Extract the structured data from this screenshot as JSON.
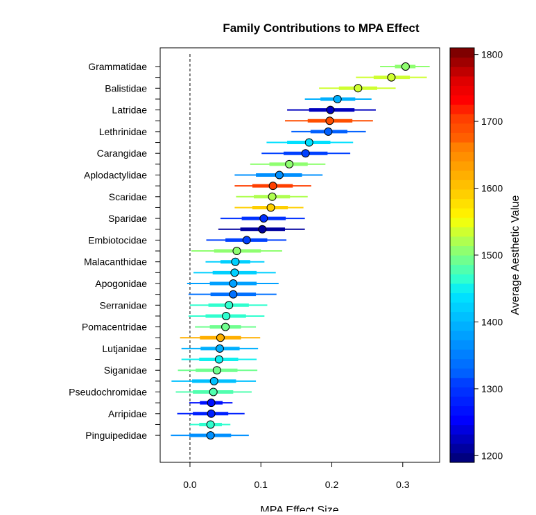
{
  "chart_data": {
    "type": "dot-interval",
    "title": "Family Contributions to MPA Effect",
    "xlabel": "MPA Effect Size",
    "xlim": [
      -0.042,
      0.352
    ],
    "xticks": [
      0.0,
      0.1,
      0.2,
      0.3
    ],
    "xtick_labels": [
      "0.0",
      "0.1",
      "0.2",
      "0.3"
    ],
    "reference_line_x": 0.0,
    "colorbar": {
      "label": "Average Aesthetic Value",
      "min": 1190,
      "max": 1810,
      "ticks": [
        1200,
        1300,
        1400,
        1500,
        1600,
        1700,
        1800
      ],
      "colors": [
        "#00007F",
        "#00009F",
        "#0000BF",
        "#0000DF",
        "#0000FF",
        "#0010FF",
        "#0020FF",
        "#0030FF",
        "#0040FF",
        "#0060FF",
        "#0070FF",
        "#0080FF",
        "#0090FF",
        "#00A0FF",
        "#00B0FF",
        "#00C0FF",
        "#00D0FF",
        "#00E0FF",
        "#10F0EF",
        "#30FFCF",
        "#50FFAF",
        "#70FF8F",
        "#8FFF70",
        "#AFFF50",
        "#CFFF30",
        "#EFFF10",
        "#FFF000",
        "#FFE000",
        "#FFCF00",
        "#FFBF00",
        "#FFAF00",
        "#FF9F00",
        "#FF8F00",
        "#FF7F00",
        "#FF5F00",
        "#FF4F00",
        "#FF3F00",
        "#FF2000",
        "#FF0000",
        "#EF0000",
        "#DF0000",
        "#BF0000",
        "#9F0000",
        "#7F0000"
      ]
    },
    "families": [
      {
        "name": "Grammatidae",
        "labeled": true,
        "mean": 0.304,
        "inner": [
          0.289,
          0.318
        ],
        "outer": [
          0.268,
          0.338
        ],
        "color": "#8FFF70"
      },
      {
        "name": "",
        "labeled": false,
        "mean": 0.284,
        "inner": [
          0.259,
          0.31
        ],
        "outer": [
          0.234,
          0.334
        ],
        "color": "#CFFF30"
      },
      {
        "name": "Balistidae",
        "labeled": true,
        "mean": 0.237,
        "inner": [
          0.21,
          0.264
        ],
        "outer": [
          0.182,
          0.29
        ],
        "color": "#CFFF30"
      },
      {
        "name": "",
        "labeled": false,
        "mean": 0.208,
        "inner": [
          0.184,
          0.233
        ],
        "outer": [
          0.162,
          0.256
        ],
        "color": "#00B0FF"
      },
      {
        "name": "Latridae",
        "labeled": true,
        "mean": 0.198,
        "inner": [
          0.168,
          0.232
        ],
        "outer": [
          0.137,
          0.262
        ],
        "color": "#0000BF"
      },
      {
        "name": "",
        "labeled": false,
        "mean": 0.197,
        "inner": [
          0.166,
          0.229
        ],
        "outer": [
          0.134,
          0.258
        ],
        "color": "#FF4F00"
      },
      {
        "name": "Lethrinidae",
        "labeled": true,
        "mean": 0.195,
        "inner": [
          0.17,
          0.222
        ],
        "outer": [
          0.143,
          0.248
        ],
        "color": "#0060FF"
      },
      {
        "name": "",
        "labeled": false,
        "mean": 0.168,
        "inner": [
          0.137,
          0.198
        ],
        "outer": [
          0.108,
          0.23
        ],
        "color": "#00E0FF"
      },
      {
        "name": "Carangidae",
        "labeled": true,
        "mean": 0.163,
        "inner": [
          0.132,
          0.194
        ],
        "outer": [
          0.101,
          0.226
        ],
        "color": "#0040FF"
      },
      {
        "name": "",
        "labeled": false,
        "mean": 0.14,
        "inner": [
          0.112,
          0.166
        ],
        "outer": [
          0.085,
          0.191
        ],
        "color": "#8FFF70"
      },
      {
        "name": "Aplodactylidae",
        "labeled": true,
        "mean": 0.126,
        "inner": [
          0.093,
          0.158
        ],
        "outer": [
          0.063,
          0.187
        ],
        "color": "#0090FF"
      },
      {
        "name": "",
        "labeled": false,
        "mean": 0.117,
        "inner": [
          0.088,
          0.145
        ],
        "outer": [
          0.063,
          0.171
        ],
        "color": "#FF3F00"
      },
      {
        "name": "Scaridae",
        "labeled": true,
        "mean": 0.116,
        "inner": [
          0.09,
          0.141
        ],
        "outer": [
          0.065,
          0.166
        ],
        "color": "#AFFF50"
      },
      {
        "name": "",
        "labeled": false,
        "mean": 0.114,
        "inner": [
          0.088,
          0.138
        ],
        "outer": [
          0.063,
          0.16
        ],
        "color": "#FFCF00"
      },
      {
        "name": "Sparidae",
        "labeled": true,
        "mean": 0.104,
        "inner": [
          0.073,
          0.135
        ],
        "outer": [
          0.043,
          0.162
        ],
        "color": "#0030FF"
      },
      {
        "name": "",
        "labeled": false,
        "mean": 0.102,
        "inner": [
          0.071,
          0.134
        ],
        "outer": [
          0.04,
          0.162
        ],
        "color": "#00009F"
      },
      {
        "name": "Embiotocidae",
        "labeled": true,
        "mean": 0.08,
        "inner": [
          0.05,
          0.109
        ],
        "outer": [
          0.023,
          0.136
        ],
        "color": "#0040FF"
      },
      {
        "name": "",
        "labeled": false,
        "mean": 0.066,
        "inner": [
          0.034,
          0.1
        ],
        "outer": [
          0.002,
          0.13
        ],
        "color": "#8FFF70"
      },
      {
        "name": "Malacanthidae",
        "labeled": true,
        "mean": 0.064,
        "inner": [
          0.043,
          0.085
        ],
        "outer": [
          0.022,
          0.105
        ],
        "color": "#00D0FF"
      },
      {
        "name": "",
        "labeled": false,
        "mean": 0.063,
        "inner": [
          0.032,
          0.094
        ],
        "outer": [
          0.005,
          0.121
        ],
        "color": "#00D0FF"
      },
      {
        "name": "Apogonidae",
        "labeled": true,
        "mean": 0.061,
        "inner": [
          0.028,
          0.094
        ],
        "outer": [
          -0.004,
          0.125
        ],
        "color": "#00A0FF"
      },
      {
        "name": "",
        "labeled": false,
        "mean": 0.061,
        "inner": [
          0.029,
          0.093
        ],
        "outer": [
          -0.002,
          0.122
        ],
        "color": "#0070FF"
      },
      {
        "name": "Serranidae",
        "labeled": true,
        "mean": 0.055,
        "inner": [
          0.026,
          0.083
        ],
        "outer": [
          0.0,
          0.109
        ],
        "color": "#30FFCF"
      },
      {
        "name": "",
        "labeled": false,
        "mean": 0.051,
        "inner": [
          0.022,
          0.079
        ],
        "outer": [
          -0.002,
          0.105
        ],
        "color": "#30FFCF"
      },
      {
        "name": "Pomacentridae",
        "labeled": true,
        "mean": 0.05,
        "inner": [
          0.028,
          0.072
        ],
        "outer": [
          0.007,
          0.093
        ],
        "color": "#70FF8F"
      },
      {
        "name": "",
        "labeled": false,
        "mean": 0.043,
        "inner": [
          0.014,
          0.072
        ],
        "outer": [
          -0.014,
          0.099
        ],
        "color": "#FFAF00"
      },
      {
        "name": "Lutjanidae",
        "labeled": true,
        "mean": 0.042,
        "inner": [
          0.015,
          0.07
        ],
        "outer": [
          -0.012,
          0.096
        ],
        "color": "#00B0FF"
      },
      {
        "name": "",
        "labeled": false,
        "mean": 0.041,
        "inner": [
          0.013,
          0.068
        ],
        "outer": [
          -0.012,
          0.094
        ],
        "color": "#10F0EF"
      },
      {
        "name": "Siganidae",
        "labeled": true,
        "mean": 0.038,
        "inner": [
          0.008,
          0.067
        ],
        "outer": [
          -0.017,
          0.095
        ],
        "color": "#70FF8F"
      },
      {
        "name": "",
        "labeled": false,
        "mean": 0.034,
        "inner": [
          0.003,
          0.065
        ],
        "outer": [
          -0.026,
          0.093
        ],
        "color": "#00C0FF"
      },
      {
        "name": "Pseudochromidae",
        "labeled": true,
        "mean": 0.033,
        "inner": [
          0.004,
          0.061
        ],
        "outer": [
          -0.02,
          0.087
        ],
        "color": "#50FFAF"
      },
      {
        "name": "",
        "labeled": false,
        "mean": 0.03,
        "inner": [
          0.014,
          0.046
        ],
        "outer": [
          -0.001,
          0.06
        ],
        "color": "#0010FF"
      },
      {
        "name": "Arripidae",
        "labeled": true,
        "mean": 0.03,
        "inner": [
          0.004,
          0.054
        ],
        "outer": [
          -0.018,
          0.077
        ],
        "color": "#0020FF"
      },
      {
        "name": "",
        "labeled": false,
        "mean": 0.029,
        "inner": [
          0.013,
          0.045
        ],
        "outer": [
          0.0,
          0.057
        ],
        "color": "#30FFCF"
      },
      {
        "name": "Pinguipedidae",
        "labeled": true,
        "mean": 0.029,
        "inner": [
          -0.001,
          0.058
        ],
        "outer": [
          -0.027,
          0.083
        ],
        "color": "#0090FF"
      }
    ]
  }
}
